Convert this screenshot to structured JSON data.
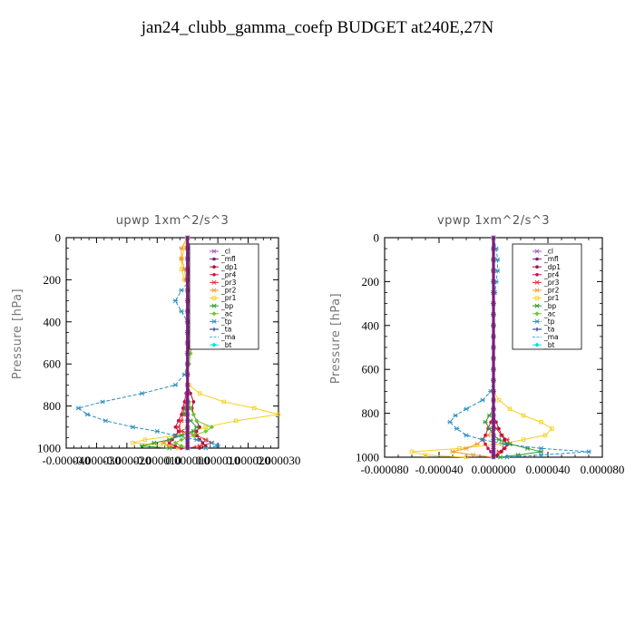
{
  "title": "jan24_clubb_gamma_coefp  BUDGET at240E,27N",
  "chart_data": [
    {
      "type": "line",
      "title": "upwp    1xm^2/s^3",
      "ylabel": "Pressure [hPa]",
      "ylim": [
        1000,
        0
      ],
      "xlim": [
        -4e-05,
        3e-05
      ],
      "yticks": [
        "0",
        "200",
        "400",
        "600",
        "800",
        "1000"
      ],
      "xticks": [
        "-0.000040",
        "-0.000030",
        "-0.000020",
        "-0.000010",
        "0.000000",
        "0.000010",
        "0.000020",
        "0.000030"
      ],
      "legend_position": "top-right",
      "pressure": [
        0,
        50,
        100,
        150,
        200,
        250,
        300,
        350,
        400,
        450,
        500,
        550,
        600,
        650,
        700,
        740,
        780,
        810,
        840,
        870,
        900,
        920,
        940,
        960,
        975,
        990,
        1000
      ],
      "series": [
        {
          "name": "_cl",
          "color": "#9a5ac8",
          "marker": "star",
          "values": [
            0,
            0,
            0,
            0,
            0,
            0,
            0,
            0,
            0,
            0,
            0,
            0,
            0,
            0,
            0,
            0,
            0,
            0,
            0,
            0,
            0,
            0,
            0,
            0,
            0,
            0,
            0
          ]
        },
        {
          "name": "_mfl",
          "color": "#7a1f7a",
          "marker": "dot",
          "values": [
            0,
            0,
            0,
            0,
            0,
            0,
            0,
            0,
            0,
            0,
            0,
            0,
            0,
            0,
            0,
            0,
            0,
            0,
            0,
            0,
            0,
            0,
            0,
            0,
            0,
            0,
            0
          ]
        },
        {
          "name": "_dp1",
          "color": "#b0103a",
          "marker": "dot",
          "values": [
            0,
            0,
            0,
            4e-07,
            8e-07,
            1e-06,
            1e-06,
            1.2e-06,
            1e-06,
            8e-07,
            6e-07,
            4e-07,
            2e-07,
            0,
            0,
            1e-06,
            2e-06,
            1.5e-06,
            2e-06,
            3e-06,
            4e-06,
            3e-06,
            3e-06,
            4e-06,
            5e-06,
            6e-06,
            4e-06
          ]
        },
        {
          "name": "_pr4",
          "color": "#d0104a",
          "marker": "dot",
          "values": [
            0,
            0,
            0,
            0,
            0,
            0,
            0,
            0,
            0,
            0,
            0,
            0,
            0,
            0,
            0,
            -5e-07,
            -1e-06,
            -1.5e-06,
            -2e-06,
            -3e-06,
            -4e-06,
            -3e-06,
            -4e-06,
            -5e-06,
            -6e-06,
            -4e-06,
            -2e-06
          ]
        },
        {
          "name": "_pr3",
          "color": "#e83030",
          "marker": "star",
          "values": [
            0,
            0,
            0,
            0,
            0,
            0,
            0,
            0,
            0,
            0,
            0,
            0,
            0,
            0,
            0,
            0,
            -5e-07,
            -1e-06,
            -1.5e-06,
            -2e-06,
            -3e-06,
            -2e-06,
            3e-06,
            6e-06,
            8e-06,
            4e-06,
            0
          ]
        },
        {
          "name": "_pr2",
          "color": "#f29a2e",
          "marker": "star",
          "values": [
            0,
            -2e-06,
            -2e-06,
            -1e-06,
            -5e-07,
            0,
            5e-07,
            1e-06,
            1e-06,
            5e-07,
            0,
            0,
            0,
            0,
            0,
            0,
            0,
            0,
            0,
            0,
            0,
            -2e-06,
            -4e-06,
            -6e-06,
            -8e-06,
            -6e-06,
            -3e-06
          ]
        },
        {
          "name": "_pr1",
          "color": "#f5d020",
          "marker": "square",
          "values": [
            0,
            -1e-06,
            -2e-06,
            -2e-06,
            -1e-06,
            1e-06,
            2e-06,
            2.5e-06,
            2e-06,
            1.5e-06,
            1e-06,
            5e-07,
            0,
            0,
            5e-07,
            4e-06,
            1.2e-05,
            2.2e-05,
            3e-05,
            1.6e-05,
            6e-06,
            2e-06,
            -4e-06,
            -1.4e-05,
            -1.8e-05,
            -6e-06,
            0
          ]
        },
        {
          "name": "_bp",
          "color": "#2e9a2e",
          "marker": "star",
          "values": [
            0,
            0,
            0,
            0,
            0,
            0,
            0,
            0,
            0,
            0,
            0,
            0,
            0,
            0,
            0,
            0,
            0,
            -5e-07,
            -1e-06,
            1e-06,
            3e-06,
            2e-06,
            -2e-06,
            -6e-06,
            -1.1e-05,
            -1.5e-05,
            -6e-06
          ]
        },
        {
          "name": "_ac",
          "color": "#6fc82c",
          "marker": "diamond",
          "values": [
            0,
            0,
            1e-06,
            1.5e-06,
            2.5e-06,
            3e-06,
            3e-06,
            2.5e-06,
            2e-06,
            2e-06,
            1.5e-06,
            1e-06,
            5e-07,
            0,
            0,
            0,
            5e-07,
            1e-06,
            2e-06,
            3e-06,
            8e-06,
            6e-06,
            2e-06,
            -2e-06,
            -4e-06,
            -2e-06,
            0
          ]
        },
        {
          "name": "_tp",
          "color": "#2a8ec0",
          "marker": "star",
          "values": [
            0,
            1e-06,
            2e-06,
            2e-06,
            1e-06,
            -2e-06,
            -4e-06,
            -2e-06,
            0,
            1e-06,
            5e-07,
            0,
            0,
            -1e-06,
            -4e-06,
            -1.5e-05,
            -2.8e-05,
            -3.6e-05,
            -3.3e-05,
            -2.7e-05,
            -1.8e-05,
            -1e-05,
            -4e-06,
            3e-06,
            8e-06,
            1e-05,
            6e-06
          ]
        },
        {
          "name": "_ta",
          "color": "#1a2a80",
          "marker": "plus",
          "values": [
            0,
            0,
            0,
            0,
            0,
            0,
            0,
            0,
            0,
            0,
            0,
            0,
            0,
            0,
            0,
            0,
            0,
            0,
            0,
            0,
            0,
            0,
            0,
            0,
            0,
            0,
            0
          ]
        },
        {
          "name": "_ma",
          "color": "#30b0e0",
          "marker": "none",
          "values": [
            0,
            0,
            0,
            0,
            0,
            0,
            0,
            0,
            0,
            0,
            0,
            0,
            0,
            0,
            0,
            0,
            0,
            0,
            0,
            0,
            0,
            0,
            0,
            0,
            0,
            0,
            0
          ]
        },
        {
          "name": "_bt",
          "color": "#00e0e0",
          "marker": "diamond",
          "values": [
            0,
            0,
            0,
            0,
            0,
            0,
            0,
            0,
            0,
            0,
            0,
            0,
            0,
            0,
            0,
            0,
            0,
            0,
            0,
            0,
            0,
            0,
            0,
            0,
            0,
            0,
            0
          ]
        }
      ]
    },
    {
      "type": "line",
      "title": "vpwp    1xm^2/s^3",
      "ylabel": "Pressure [hPa]",
      "ylim": [
        1000,
        0
      ],
      "xlim": [
        -8e-05,
        8e-05
      ],
      "yticks": [
        "0",
        "200",
        "400",
        "600",
        "800",
        "1000"
      ],
      "xticks": [
        "-0.000080",
        "-0.000040",
        "0.000000",
        "0.000040",
        "0.000080"
      ],
      "legend_position": "top-right",
      "pressure": [
        0,
        50,
        100,
        150,
        200,
        250,
        300,
        350,
        400,
        450,
        500,
        550,
        600,
        650,
        700,
        740,
        780,
        810,
        840,
        870,
        900,
        920,
        940,
        960,
        975,
        990,
        1000
      ],
      "series": [
        {
          "name": "_cl",
          "color": "#9a5ac8",
          "marker": "star",
          "values": [
            0,
            0,
            0,
            0,
            0,
            0,
            0,
            0,
            0,
            0,
            0,
            0,
            0,
            0,
            0,
            0,
            0,
            0,
            0,
            0,
            0,
            0,
            0,
            0,
            0,
            0,
            0
          ]
        },
        {
          "name": "_mfl",
          "color": "#7a1f7a",
          "marker": "dot",
          "values": [
            0,
            0,
            0,
            0,
            0,
            0,
            0,
            0,
            0,
            0,
            0,
            0,
            0,
            0,
            0,
            0,
            0,
            0,
            0,
            0,
            0,
            0,
            0,
            0,
            0,
            0,
            0
          ]
        },
        {
          "name": "_dp1",
          "color": "#b0103a",
          "marker": "dot",
          "values": [
            0,
            0,
            0,
            0,
            0,
            0,
            0,
            0,
            0,
            0,
            0,
            0,
            0,
            0,
            0,
            0,
            0,
            0,
            2e-06,
            4e-06,
            6e-06,
            8e-06,
            1e-05,
            8e-06,
            6e-06,
            3e-06,
            0
          ]
        },
        {
          "name": "_pr4",
          "color": "#d0104a",
          "marker": "dot",
          "values": [
            0,
            0,
            0,
            0,
            0,
            0,
            0,
            0,
            0,
            0,
            0,
            0,
            0,
            0,
            0,
            0,
            0,
            0,
            -2e-06,
            -4e-06,
            -6e-06,
            -8e-06,
            -6e-06,
            -4e-06,
            -2e-06,
            0,
            0
          ]
        },
        {
          "name": "_pr3",
          "color": "#e83030",
          "marker": "star",
          "values": [
            0,
            0,
            0,
            0,
            0,
            0,
            0,
            0,
            0,
            0,
            0,
            0,
            0,
            0,
            0,
            0,
            0,
            0,
            0,
            2e-06,
            6e-06,
            1e-05,
            1.2e-05,
            8e-06,
            4e-06,
            2e-06,
            0
          ]
        },
        {
          "name": "_pr2",
          "color": "#f29a2e",
          "marker": "star",
          "values": [
            0,
            0,
            0,
            0,
            0,
            0,
            0,
            0,
            0,
            0,
            0,
            0,
            0,
            0,
            0,
            0,
            0,
            0,
            0,
            0,
            -4e-06,
            -8e-06,
            -1.2e-05,
            -2e-05,
            -3e-05,
            -1.5e-05,
            0
          ]
        },
        {
          "name": "_pr1",
          "color": "#f5d020",
          "marker": "square",
          "values": [
            0,
            0,
            0,
            0,
            0,
            0,
            0,
            0,
            0,
            0,
            0,
            0,
            0,
            0,
            0,
            4e-06,
            1.2e-05,
            2.2e-05,
            3.5e-05,
            4.3e-05,
            3.8e-05,
            2.2e-05,
            6e-06,
            -2.5e-05,
            -6e-05,
            -5e-05,
            -2e-05
          ]
        },
        {
          "name": "_bp",
          "color": "#2e9a2e",
          "marker": "star",
          "values": [
            0,
            0,
            0,
            0,
            0,
            0,
            0,
            0,
            0,
            0,
            0,
            0,
            0,
            0,
            0,
            0,
            0,
            -3e-06,
            -6e-06,
            -3e-06,
            0,
            4e-06,
            1.2e-05,
            2.5e-05,
            3.5e-05,
            1.8e-05,
            5e-06
          ]
        },
        {
          "name": "_ac",
          "color": "#6fc82c",
          "marker": "diamond",
          "values": [
            0,
            0,
            0,
            0,
            0,
            0,
            0,
            0,
            0,
            0,
            0,
            0,
            0,
            0,
            0,
            0,
            0,
            0,
            0,
            0,
            0,
            0,
            0,
            0,
            0,
            0,
            0
          ]
        },
        {
          "name": "_tp",
          "color": "#2a8ec0",
          "marker": "star",
          "values": [
            0,
            2e-06,
            3e-06,
            3e-06,
            2e-06,
            1e-06,
            0,
            0,
            0,
            0,
            0,
            0,
            0,
            0,
            -2e-06,
            -8e-06,
            -2e-05,
            -2.8e-05,
            -3.2e-05,
            -2.7e-05,
            -2e-05,
            -8e-06,
            8e-06,
            3.5e-05,
            7e-05,
            3.5e-05,
            1e-05
          ]
        },
        {
          "name": "_ta",
          "color": "#1a2a80",
          "marker": "plus",
          "values": [
            0,
            0,
            0,
            0,
            0,
            0,
            0,
            0,
            0,
            0,
            0,
            0,
            0,
            0,
            0,
            0,
            0,
            0,
            0,
            0,
            0,
            0,
            0,
            0,
            0,
            0,
            0
          ]
        },
        {
          "name": "_ma",
          "color": "#30b0e0",
          "marker": "none",
          "values": [
            0,
            0,
            0,
            0,
            0,
            0,
            0,
            0,
            0,
            0,
            0,
            0,
            0,
            0,
            0,
            0,
            0,
            0,
            0,
            0,
            0,
            0,
            0,
            0,
            0,
            0,
            0
          ]
        },
        {
          "name": "_bt",
          "color": "#00e0e0",
          "marker": "diamond",
          "values": [
            0,
            0,
            0,
            0,
            0,
            0,
            0,
            0,
            0,
            0,
            0,
            0,
            0,
            0,
            0,
            0,
            0,
            0,
            0,
            0,
            0,
            0,
            0,
            0,
            0,
            0,
            0
          ]
        }
      ]
    }
  ]
}
